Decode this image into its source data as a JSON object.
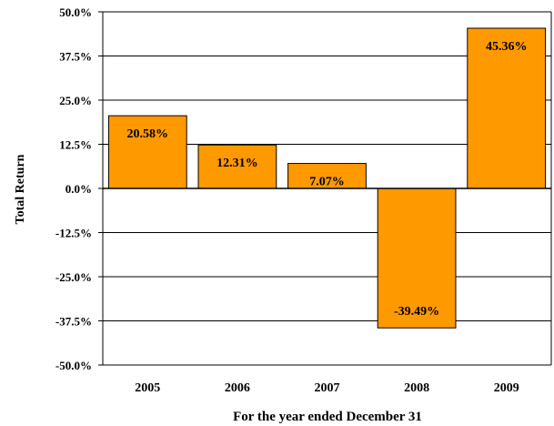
{
  "chart_data": {
    "type": "bar",
    "categories": [
      "2005",
      "2006",
      "2007",
      "2008",
      "2009"
    ],
    "values": [
      20.58,
      12.31,
      7.07,
      -39.49,
      45.36
    ],
    "data_labels": [
      "20.58%",
      "12.31%",
      "7.07%",
      "-39.49%",
      "45.36%"
    ],
    "xlabel": "For the year ended December 31",
    "ylabel": "Total Return",
    "ylim": [
      -50,
      50
    ],
    "yticks": [
      50,
      37.5,
      25,
      12.5,
      0,
      -12.5,
      -25,
      -37.5,
      -50
    ],
    "ytick_labels": [
      "50.0%",
      "37.5%",
      "25.0%",
      "12.5%",
      "0.0%",
      "-12.5%",
      "-25.0%",
      "-37.5%",
      "-50.0%"
    ],
    "grid": true,
    "legend": false,
    "colors": {
      "bar_fill": "#FF9900",
      "bar_stroke": "#000000",
      "grid": "#000000"
    }
  }
}
